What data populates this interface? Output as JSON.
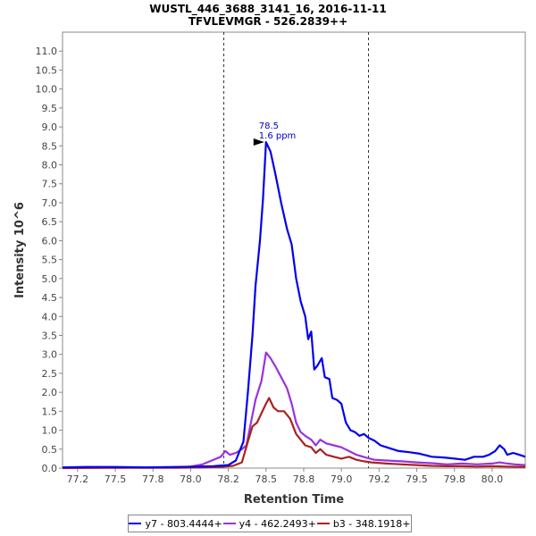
{
  "chart_data": {
    "type": "line",
    "title": "WUSTL_446_3688_3141_16, 2016-11-11",
    "subtitle": "TFVLEVMGR - 526.2839++",
    "xlabel": "Retention Time",
    "ylabel": "Intensity 10^6",
    "xlim": [
      77.15,
      80.22
    ],
    "ylim": [
      0,
      11.5
    ],
    "x_ticks": [
      "77.2",
      "77.5",
      "77.8",
      "78.0",
      "78.2",
      "78.5",
      "78.8",
      "79.0",
      "79.2",
      "79.5",
      "79.8",
      "80.0"
    ],
    "x_tick_values": [
      77.25,
      77.5,
      77.75,
      78.0,
      78.25,
      78.5,
      78.75,
      79.0,
      79.25,
      79.5,
      79.75,
      80.0
    ],
    "y_ticks": [
      "0.0",
      "0.5",
      "1.0",
      "1.5",
      "2.0",
      "2.5",
      "3.0",
      "3.5",
      "4.0",
      "4.5",
      "5.0",
      "5.5",
      "6.0",
      "6.5",
      "7.0",
      "7.5",
      "8.0",
      "8.5",
      "9.0",
      "9.5",
      "10.0",
      "10.5",
      "11.0"
    ],
    "y_tick_values": [
      0,
      0.5,
      1,
      1.5,
      2,
      2.5,
      3,
      3.5,
      4,
      4.5,
      5,
      5.5,
      6,
      6.5,
      7,
      7.5,
      8,
      8.5,
      9,
      9.5,
      10,
      10.5,
      11
    ],
    "integration_bounds": [
      78.22,
      79.18
    ],
    "annotation": {
      "x": 78.5,
      "y": 8.6,
      "line1": "78.5",
      "line2": "1.6 ppm"
    },
    "grid": false,
    "legend_position": "bottom",
    "series": [
      {
        "name": "y7 - 803.4444+",
        "color": "#0000ee",
        "points": [
          [
            77.15,
            0.02
          ],
          [
            77.3,
            0.03
          ],
          [
            77.5,
            0.03
          ],
          [
            77.7,
            0.02
          ],
          [
            77.9,
            0.03
          ],
          [
            78.05,
            0.04
          ],
          [
            78.15,
            0.05
          ],
          [
            78.25,
            0.08
          ],
          [
            78.3,
            0.2
          ],
          [
            78.35,
            0.7
          ],
          [
            78.38,
            2.0
          ],
          [
            78.41,
            3.5
          ],
          [
            78.43,
            4.8
          ],
          [
            78.46,
            6.0
          ],
          [
            78.48,
            7.1
          ],
          [
            78.5,
            8.6
          ],
          [
            78.53,
            8.35
          ],
          [
            78.56,
            7.8
          ],
          [
            78.6,
            7.0
          ],
          [
            78.64,
            6.3
          ],
          [
            78.67,
            5.9
          ],
          [
            78.7,
            5.0
          ],
          [
            78.73,
            4.4
          ],
          [
            78.76,
            4.0
          ],
          [
            78.78,
            3.4
          ],
          [
            78.8,
            3.6
          ],
          [
            78.82,
            2.6
          ],
          [
            78.84,
            2.7
          ],
          [
            78.87,
            2.9
          ],
          [
            78.89,
            2.4
          ],
          [
            78.92,
            2.35
          ],
          [
            78.94,
            1.85
          ],
          [
            78.97,
            1.8
          ],
          [
            79.0,
            1.7
          ],
          [
            79.03,
            1.2
          ],
          [
            79.06,
            1.0
          ],
          [
            79.09,
            0.95
          ],
          [
            79.12,
            0.85
          ],
          [
            79.15,
            0.9
          ],
          [
            79.18,
            0.8
          ],
          [
            79.22,
            0.72
          ],
          [
            79.26,
            0.6
          ],
          [
            79.3,
            0.55
          ],
          [
            79.38,
            0.45
          ],
          [
            79.45,
            0.42
          ],
          [
            79.52,
            0.38
          ],
          [
            79.6,
            0.3
          ],
          [
            79.68,
            0.28
          ],
          [
            79.75,
            0.25
          ],
          [
            79.82,
            0.22
          ],
          [
            79.88,
            0.3
          ],
          [
            79.94,
            0.3
          ],
          [
            79.98,
            0.35
          ],
          [
            80.02,
            0.45
          ],
          [
            80.05,
            0.6
          ],
          [
            80.08,
            0.5
          ],
          [
            80.1,
            0.35
          ],
          [
            80.14,
            0.4
          ],
          [
            80.18,
            0.35
          ],
          [
            80.22,
            0.3
          ]
        ]
      },
      {
        "name": "y4 - 462.2493+",
        "color": "#9933dd",
        "points": [
          [
            77.15,
            0.01
          ],
          [
            77.3,
            0.02
          ],
          [
            77.5,
            0.01
          ],
          [
            77.7,
            0.02
          ],
          [
            77.9,
            0.02
          ],
          [
            78.0,
            0.04
          ],
          [
            78.08,
            0.1
          ],
          [
            78.14,
            0.2
          ],
          [
            78.2,
            0.3
          ],
          [
            78.23,
            0.45
          ],
          [
            78.26,
            0.35
          ],
          [
            78.3,
            0.4
          ],
          [
            78.34,
            0.5
          ],
          [
            78.37,
            0.6
          ],
          [
            78.4,
            1.2
          ],
          [
            78.43,
            1.8
          ],
          [
            78.47,
            2.3
          ],
          [
            78.5,
            3.05
          ],
          [
            78.53,
            2.9
          ],
          [
            78.56,
            2.7
          ],
          [
            78.6,
            2.4
          ],
          [
            78.64,
            2.1
          ],
          [
            78.67,
            1.7
          ],
          [
            78.7,
            1.2
          ],
          [
            78.73,
            0.95
          ],
          [
            78.76,
            0.85
          ],
          [
            78.8,
            0.75
          ],
          [
            78.83,
            0.6
          ],
          [
            78.86,
            0.75
          ],
          [
            78.9,
            0.65
          ],
          [
            78.95,
            0.6
          ],
          [
            79.0,
            0.55
          ],
          [
            79.05,
            0.45
          ],
          [
            79.1,
            0.35
          ],
          [
            79.16,
            0.28
          ],
          [
            79.22,
            0.22
          ],
          [
            79.3,
            0.2
          ],
          [
            79.4,
            0.18
          ],
          [
            79.5,
            0.15
          ],
          [
            79.6,
            0.13
          ],
          [
            79.7,
            0.1
          ],
          [
            79.8,
            0.12
          ],
          [
            79.9,
            0.1
          ],
          [
            80.0,
            0.12
          ],
          [
            80.05,
            0.15
          ],
          [
            80.1,
            0.12
          ],
          [
            80.15,
            0.1
          ],
          [
            80.22,
            0.08
          ]
        ]
      },
      {
        "name": "b3 - 348.1918+",
        "color": "#aa2222",
        "points": [
          [
            77.15,
            0.0
          ],
          [
            77.5,
            0.01
          ],
          [
            77.9,
            0.01
          ],
          [
            78.1,
            0.02
          ],
          [
            78.2,
            0.03
          ],
          [
            78.28,
            0.06
          ],
          [
            78.34,
            0.15
          ],
          [
            78.38,
            0.7
          ],
          [
            78.41,
            1.1
          ],
          [
            78.44,
            1.2
          ],
          [
            78.47,
            1.45
          ],
          [
            78.5,
            1.7
          ],
          [
            78.52,
            1.85
          ],
          [
            78.55,
            1.6
          ],
          [
            78.58,
            1.5
          ],
          [
            78.62,
            1.5
          ],
          [
            78.66,
            1.3
          ],
          [
            78.7,
            0.9
          ],
          [
            78.73,
            0.75
          ],
          [
            78.76,
            0.6
          ],
          [
            78.8,
            0.55
          ],
          [
            78.83,
            0.4
          ],
          [
            78.86,
            0.5
          ],
          [
            78.9,
            0.35
          ],
          [
            78.95,
            0.3
          ],
          [
            79.0,
            0.25
          ],
          [
            79.05,
            0.3
          ],
          [
            79.1,
            0.22
          ],
          [
            79.15,
            0.18
          ],
          [
            79.2,
            0.15
          ],
          [
            79.3,
            0.12
          ],
          [
            79.4,
            0.1
          ],
          [
            79.5,
            0.08
          ],
          [
            79.6,
            0.06
          ],
          [
            79.7,
            0.05
          ],
          [
            79.8,
            0.05
          ],
          [
            79.9,
            0.04
          ],
          [
            80.0,
            0.05
          ],
          [
            80.1,
            0.04
          ],
          [
            80.22,
            0.03
          ]
        ]
      }
    ]
  }
}
